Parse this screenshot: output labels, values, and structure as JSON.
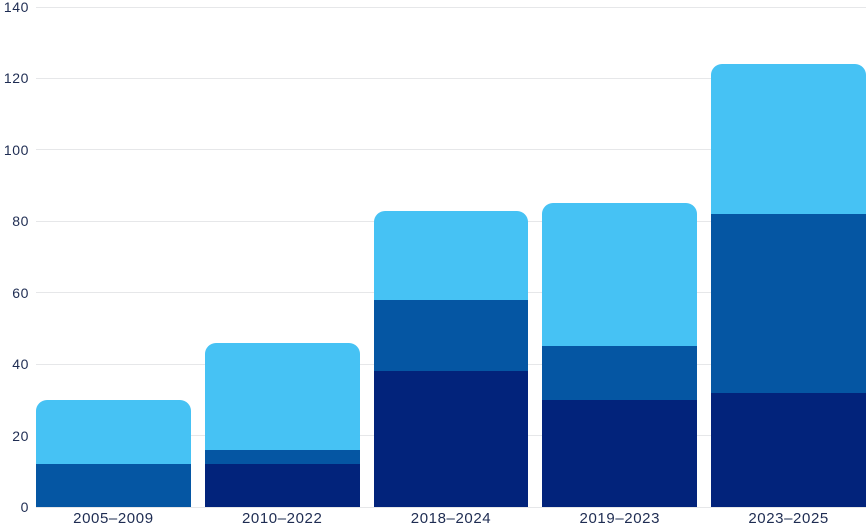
{
  "chart_data": {
    "type": "bar",
    "stacked": true,
    "title": "",
    "xlabel": "",
    "ylabel": "",
    "categories": [
      "2005–2009",
      "2010–2022",
      "2018–2024",
      "2019–2023",
      "2023–2025"
    ],
    "series": [
      {
        "name": "bottom-dark-navy",
        "color": "#02237B",
        "values": [
          0,
          12,
          38,
          30,
          32
        ]
      },
      {
        "name": "middle-medium-blue",
        "color": "#0556A3",
        "values": [
          12,
          4,
          20,
          15,
          50
        ]
      },
      {
        "name": "top-light-blue",
        "color": "#46C2F4",
        "values": [
          18,
          30,
          25,
          40,
          42
        ]
      }
    ],
    "totals": [
      30,
      46,
      83,
      85,
      124
    ],
    "y_axis": {
      "min": 0,
      "max": 140,
      "ticks": [
        0,
        20,
        40,
        60,
        80,
        100,
        120,
        140
      ],
      "tick_labels": [
        "0",
        "20",
        "40",
        "60",
        "80",
        "100",
        "120",
        "140"
      ]
    },
    "grid": true,
    "legend": false,
    "colors": {
      "background": "#FFFFFF",
      "gridline": "#E6E7E9",
      "tick_text": "#1E2C52",
      "category_text": "#1E2C52"
    }
  }
}
